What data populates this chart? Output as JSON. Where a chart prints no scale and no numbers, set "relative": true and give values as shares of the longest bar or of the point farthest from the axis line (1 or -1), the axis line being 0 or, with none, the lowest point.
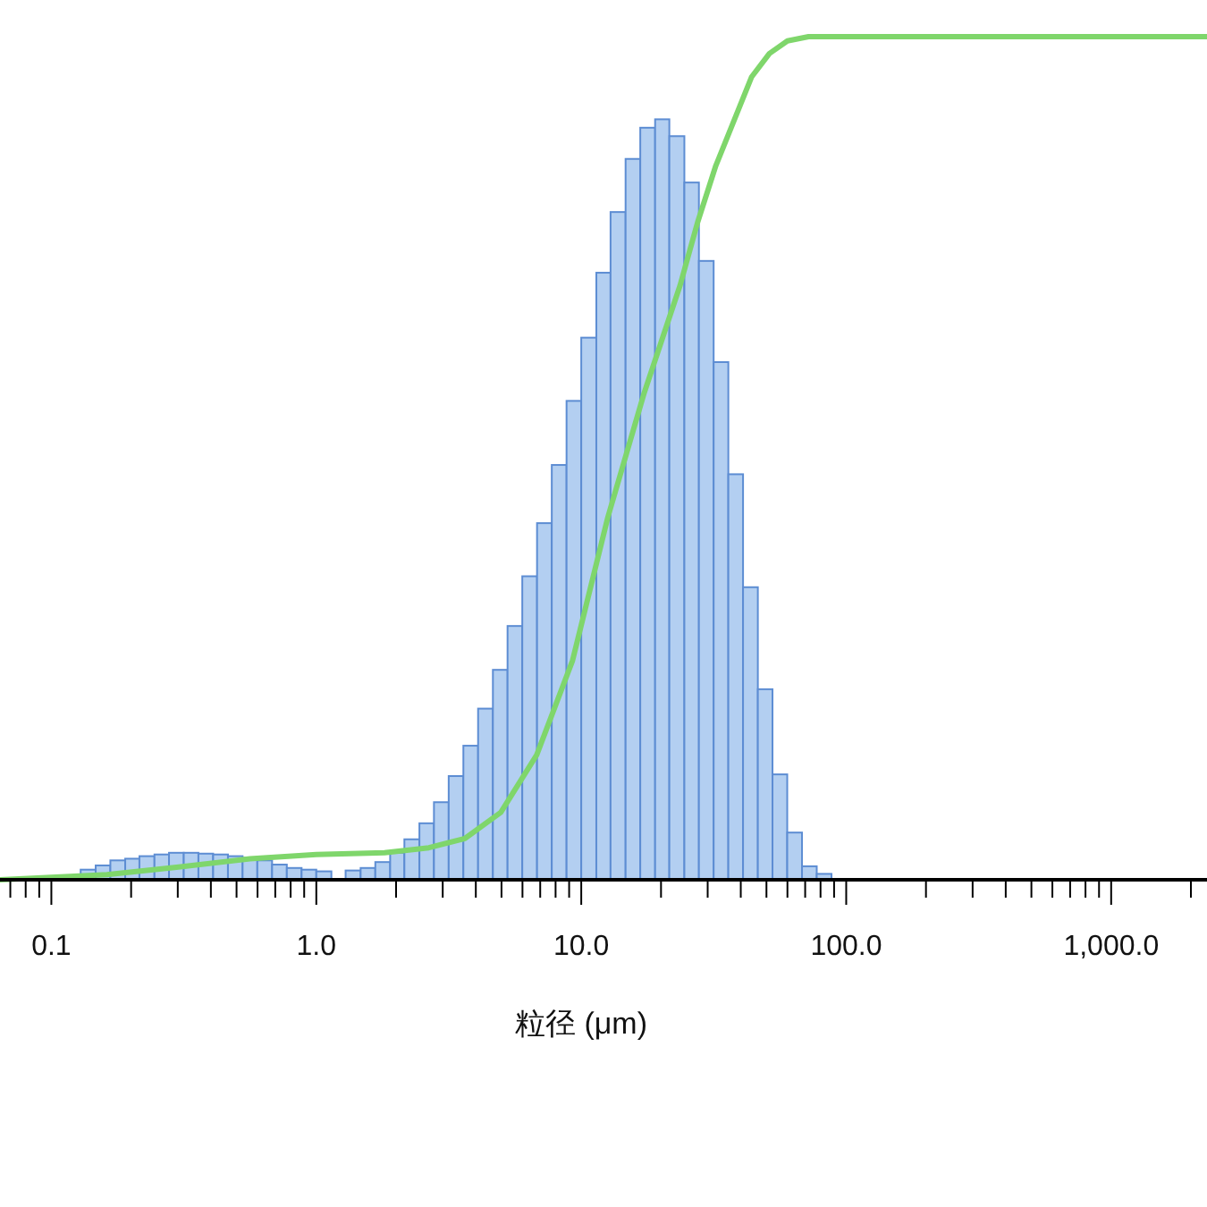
{
  "chart_data": {
    "type": "histogram",
    "xlabel": "粒径 (μm)",
    "relative": true,
    "log": "x",
    "color": "#b3cff1",
    "bins": [
      0.129,
      0.147,
      0.167,
      0.19,
      0.215,
      0.245,
      0.278,
      0.316,
      0.359,
      0.408,
      0.464,
      0.527,
      0.599,
      0.681,
      0.774,
      0.88,
      1.0,
      1.14,
      1.29,
      1.47,
      1.67,
      1.9,
      2.15,
      2.45,
      2.78,
      3.16,
      3.59,
      4.08,
      4.64,
      5.27,
      5.99,
      6.81,
      7.74,
      8.8,
      10.0,
      11.4,
      12.9,
      14.7,
      16.7,
      19.0,
      21.5,
      24.5,
      27.8,
      31.6,
      35.9,
      40.8,
      46.4,
      52.7,
      59.9,
      68.1,
      77.4,
      88.0
    ],
    "values": [
      0.012,
      0.017,
      0.023,
      0.025,
      0.028,
      0.03,
      0.032,
      0.032,
      0.031,
      0.03,
      0.028,
      0.026,
      0.023,
      0.018,
      0.014,
      0.012,
      0.01,
      0,
      0.011,
      0.014,
      0.021,
      0.032,
      0.048,
      0.067,
      0.092,
      0.123,
      0.159,
      0.203,
      0.249,
      0.301,
      0.36,
      0.423,
      0.492,
      0.568,
      0.643,
      0.72,
      0.792,
      0.855,
      0.892,
      0.902,
      0.882,
      0.827,
      0.734,
      0.614,
      0.481,
      0.347,
      0.226,
      0.125,
      0.056,
      0.016,
      0.007
    ],
    "series": [
      {
        "type": "line",
        "color": "#7fd66b",
        "x": [
          0.064,
          0.162,
          0.302,
          0.562,
          1.0,
          1.81,
          2.66,
          3.64,
          4.97,
          6.79,
          9.27,
          12.6,
          17.3,
          23.6,
          27.5,
          32.2,
          43.9,
          51.3,
          60.0,
          72.1,
          2300
        ],
        "values": [
          0,
          0.006,
          0.015,
          0.025,
          0.03,
          0.032,
          0.038,
          0.049,
          0.08,
          0.148,
          0.26,
          0.43,
          0.578,
          0.705,
          0.78,
          0.847,
          0.952,
          0.98,
          0.995,
          1.0,
          1.0
        ]
      }
    ],
    "xlim": [
      0.064,
      2300
    ],
    "xticks": [
      {
        "value": 0.07,
        "label": null
      },
      {
        "value": 0.08,
        "label": null
      },
      {
        "value": 0.09,
        "label": null
      },
      {
        "value": 0.1,
        "label": "0.1"
      },
      {
        "value": 0.2,
        "label": null
      },
      {
        "value": 0.3,
        "label": null
      },
      {
        "value": 0.4,
        "label": null
      },
      {
        "value": 0.5,
        "label": null
      },
      {
        "value": 0.6,
        "label": null
      },
      {
        "value": 0.7,
        "label": null
      },
      {
        "value": 0.8,
        "label": null
      },
      {
        "value": 0.9,
        "label": null
      },
      {
        "value": 1,
        "label": "1.0"
      },
      {
        "value": 2,
        "label": null
      },
      {
        "value": 3,
        "label": null
      },
      {
        "value": 4,
        "label": null
      },
      {
        "value": 5,
        "label": null
      },
      {
        "value": 6,
        "label": null
      },
      {
        "value": 7,
        "label": null
      },
      {
        "value": 8,
        "label": null
      },
      {
        "value": 9,
        "label": null
      },
      {
        "value": 10,
        "label": "10.0"
      },
      {
        "value": 20,
        "label": null
      },
      {
        "value": 30,
        "label": null
      },
      {
        "value": 40,
        "label": null
      },
      {
        "value": 50,
        "label": null
      },
      {
        "value": 60,
        "label": null
      },
      {
        "value": 70,
        "label": null
      },
      {
        "value": 80,
        "label": null
      },
      {
        "value": 90,
        "label": null
      },
      {
        "value": 100,
        "label": "100.0"
      },
      {
        "value": 200,
        "label": null
      },
      {
        "value": 300,
        "label": null
      },
      {
        "value": 400,
        "label": null
      },
      {
        "value": 500,
        "label": null
      },
      {
        "value": 600,
        "label": null
      },
      {
        "value": 700,
        "label": null
      },
      {
        "value": 800,
        "label": null
      },
      {
        "value": 900,
        "label": null
      },
      {
        "value": 1000,
        "label": "1,000.0"
      },
      {
        "value": 2000,
        "label": null
      }
    ]
  }
}
